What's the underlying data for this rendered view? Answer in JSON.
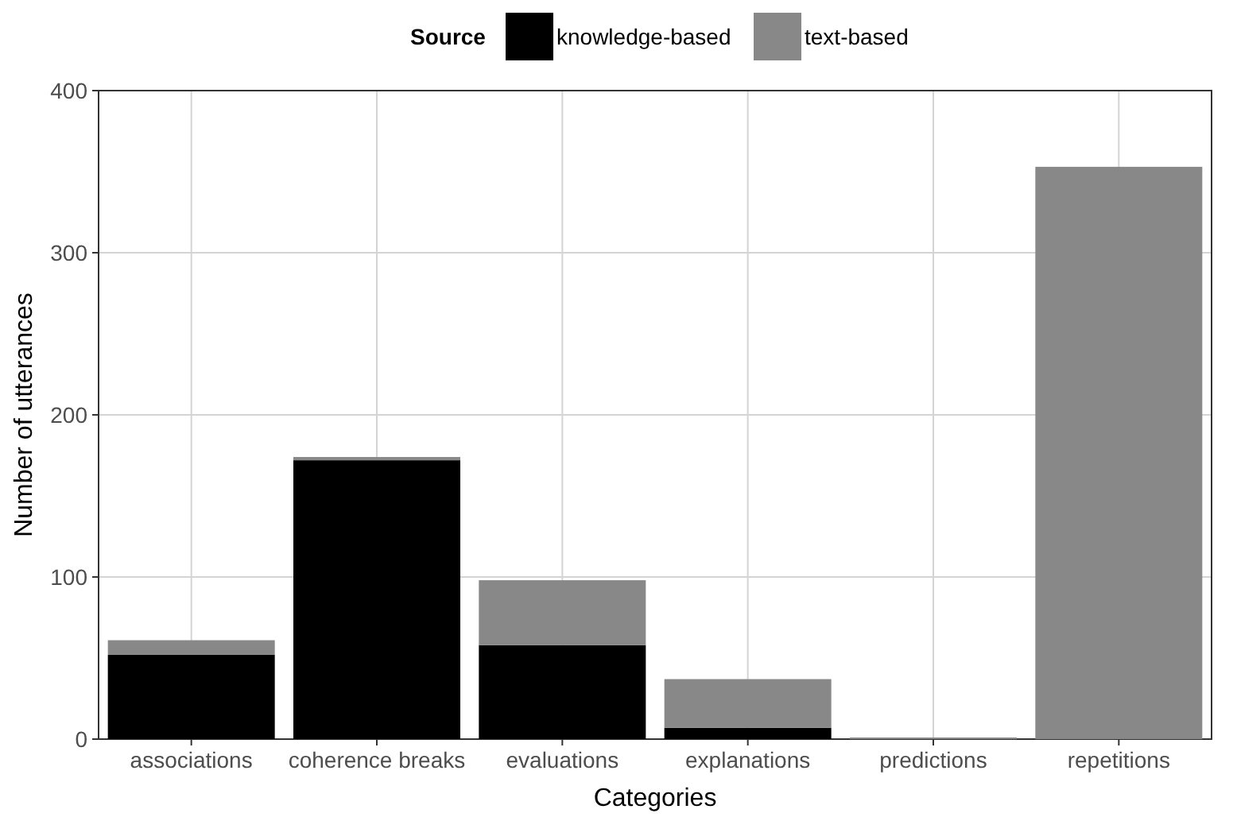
{
  "chart_data": {
    "type": "bar",
    "xlabel": "Categories",
    "ylabel": "Number of utterances",
    "legend_title": "Source",
    "categories": [
      "associations",
      "coherence breaks",
      "evaluations",
      "explanations",
      "predictions",
      "repetitions"
    ],
    "series": [
      {
        "name": "knowledge-based",
        "color": "#000000",
        "values": [
          52,
          172,
          58,
          7,
          0,
          0
        ]
      },
      {
        "name": "text-based",
        "color": "#888888",
        "values": [
          9,
          2,
          40,
          30,
          1,
          353
        ]
      }
    ],
    "stacked": true,
    "ylim": [
      0,
      400
    ],
    "yticks": [
      0,
      100,
      200,
      300,
      400
    ],
    "grid": true,
    "legend": "top"
  }
}
